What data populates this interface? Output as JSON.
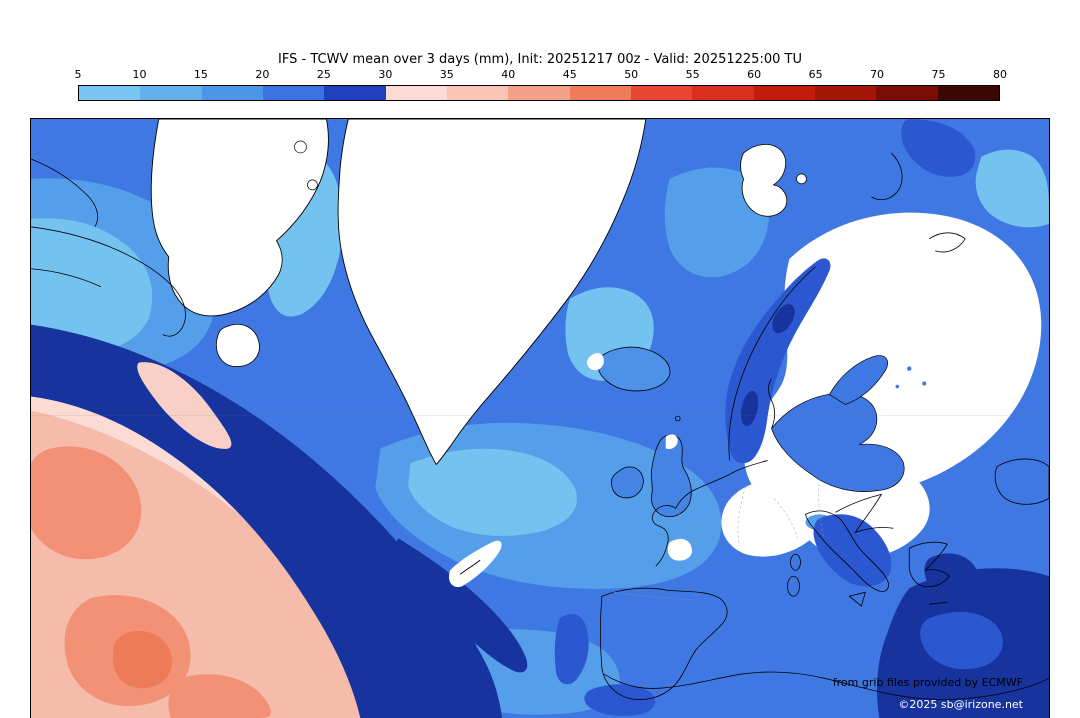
{
  "title": "IFS - TCWV mean over 3 days (mm), Init: 20251217 00z - Valid: 20251225:00 TU",
  "colorbar": {
    "ticks": [
      "5",
      "10",
      "15",
      "20",
      "25",
      "30",
      "35",
      "40",
      "45",
      "50",
      "55",
      "60",
      "65",
      "70",
      "75",
      "80"
    ],
    "segment_colors": [
      "#79c5f1",
      "#62b1ed",
      "#4c96e8",
      "#3b74e0",
      "#1f41bb",
      "#fbdbd4",
      "#f9c3b5",
      "#f5a189",
      "#f07a5c",
      "#e74632",
      "#da2f1f",
      "#c21d0c",
      "#a31507",
      "#7a0e04",
      "#3c0702"
    ]
  },
  "credits": {
    "line1": "from grib files provided by ECMWF",
    "line2": "©2025 sb@irizone.net"
  },
  "map_colors": {
    "below_scale_white": "#ffffff",
    "ocean_10_15": "#74c2f0",
    "ocean_15_20": "#559fea",
    "ocean_20_25": "#3f78e3",
    "ocean_25_30_navy": "#16339e",
    "pink_30_35": "#fbdbd4",
    "pink_35_40": "#f6bcab",
    "pink_40_45": "#f29175",
    "pink_45_50": "#ee7b58",
    "coastline": "#000000"
  },
  "chart_data": {
    "type": "heatmap",
    "title": "IFS - TCWV mean over 3 days (mm), Init: 20251217 00z - Valid: 20251225:00 TU",
    "colorbar_ticks": [
      5,
      10,
      15,
      20,
      25,
      30,
      35,
      40,
      45,
      50,
      55,
      60,
      65,
      70,
      75,
      80
    ],
    "colorbar_colors": [
      "#79c5f1",
      "#62b1ed",
      "#4c96e8",
      "#3b74e0",
      "#1f41bb",
      "#fbdbd4",
      "#f9c3b5",
      "#f5a189",
      "#f07a5c",
      "#e74632",
      "#da2f1f",
      "#c21d0c",
      "#a31507",
      "#7a0e04",
      "#3c0702"
    ],
    "legend_position": "top-horizontal",
    "value_range_mm": [
      5,
      80
    ]
  }
}
